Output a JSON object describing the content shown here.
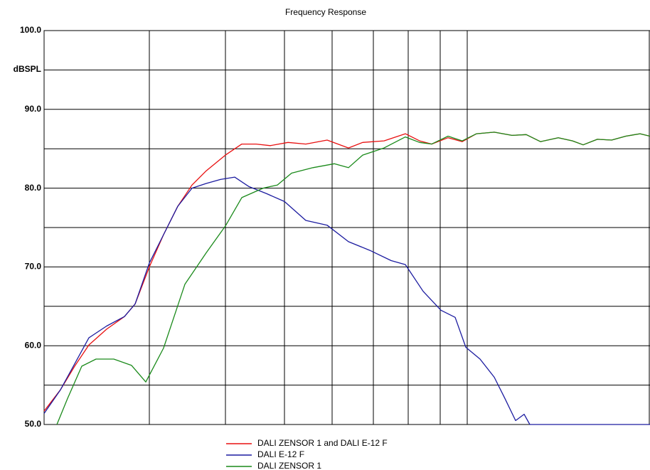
{
  "chart_data": {
    "type": "line",
    "title": "Frequency Response",
    "ylabel": "dBSPL",
    "xlim": [
      0,
      852
    ],
    "ylim": [
      50,
      100
    ],
    "yticks": [
      {
        "value": 100,
        "label": "100.0"
      },
      {
        "value": 90,
        "label": "90.0"
      },
      {
        "value": 80,
        "label": "80.0"
      },
      {
        "value": 70,
        "label": "70.0"
      },
      {
        "value": 60,
        "label": "60.0"
      },
      {
        "value": 50,
        "label": "50.0"
      }
    ],
    "ygrid": [
      95,
      85,
      75,
      65,
      55
    ],
    "xgrid": [
      148,
      255,
      338,
      405,
      463,
      512,
      557,
      595
    ],
    "series": [
      {
        "name": "DALI ZENSOR 1 and DALI E-12 F",
        "color": "#e81010",
        "x": [
          0,
          23,
          43,
          63,
          88,
          113,
          128,
          148,
          168,
          188,
          208,
          228,
          255,
          278,
          298,
          318,
          343,
          368,
          398,
          428,
          448,
          478,
          508,
          528,
          545,
          568,
          588,
          608,
          633,
          658,
          678,
          698,
          723,
          743,
          758,
          778,
          798,
          818,
          838,
          852
        ],
        "values": [
          51.7,
          54.4,
          57.4,
          60.1,
          62.1,
          63.7,
          65.3,
          70.0,
          74.1,
          77.7,
          80.4,
          82.2,
          84.2,
          85.6,
          85.6,
          85.4,
          85.8,
          85.6,
          86.1,
          85.1,
          85.8,
          86.0,
          86.9,
          86.0,
          85.6,
          86.4,
          85.9,
          86.9,
          87.1,
          86.7,
          86.8,
          85.9,
          86.4,
          86.0,
          85.5,
          86.2,
          86.1,
          86.6,
          86.9,
          86.6
        ]
      },
      {
        "name": "DALI E-12 F",
        "color": "#1c1ca0",
        "x": [
          0,
          23,
          43,
          63,
          88,
          113,
          128,
          148,
          168,
          188,
          208,
          228,
          248,
          268,
          288,
          313,
          338,
          368,
          398,
          428,
          458,
          488,
          508,
          533,
          558,
          578,
          593,
          613,
          633,
          648,
          663,
          675,
          683,
          852
        ],
        "values": [
          51.4,
          54.4,
          57.7,
          61.0,
          62.5,
          63.7,
          65.3,
          70.5,
          74.1,
          77.7,
          80.0,
          80.6,
          81.1,
          81.4,
          80.2,
          79.3,
          78.3,
          75.9,
          75.3,
          73.2,
          72.1,
          70.8,
          70.3,
          66.9,
          64.5,
          63.6,
          59.8,
          58.3,
          56.0,
          53.3,
          50.5,
          51.3,
          50,
          50
        ]
      },
      {
        "name": "DALI ZENSOR 1",
        "color": "#1a8a1a",
        "x": [
          18,
          33,
          53,
          73,
          98,
          123,
          143,
          168,
          198,
          228,
          255,
          278,
          308,
          328,
          348,
          378,
          408,
          428,
          448,
          478,
          508,
          528,
          545,
          568,
          588,
          608,
          633,
          658,
          678,
          698,
          723,
          743,
          758,
          778,
          798,
          818,
          838,
          852
        ],
        "values": [
          50,
          53.3,
          57.4,
          58.3,
          58.3,
          57.5,
          55.4,
          59.7,
          67.8,
          71.8,
          75.2,
          78.8,
          80.0,
          80.4,
          81.9,
          82.6,
          83.1,
          82.6,
          84.2,
          85.1,
          86.5,
          85.8,
          85.6,
          86.6,
          86.0,
          86.9,
          87.1,
          86.7,
          86.8,
          85.9,
          86.4,
          86.0,
          85.5,
          86.2,
          86.1,
          86.6,
          86.9,
          86.6
        ]
      }
    ]
  }
}
